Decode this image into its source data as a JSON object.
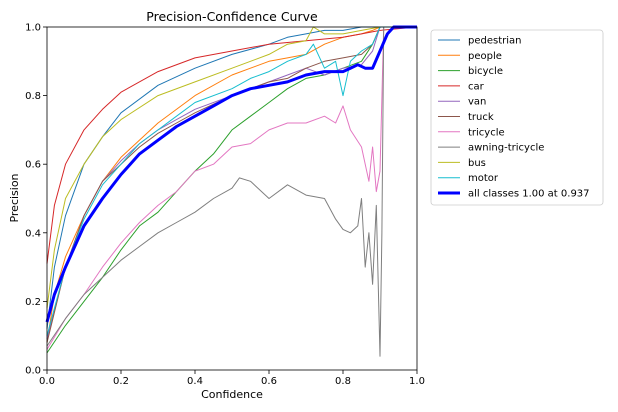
{
  "chart_data": {
    "type": "line",
    "title": "Precision-Confidence Curve",
    "xlabel": "Confidence",
    "ylabel": "Precision",
    "xlim": [
      0.0,
      1.0
    ],
    "ylim": [
      0.0,
      1.0
    ],
    "xticks": [
      "0.0",
      "0.2",
      "0.4",
      "0.6",
      "0.8",
      "1.0"
    ],
    "yticks": [
      "0.0",
      "0.2",
      "0.4",
      "0.6",
      "0.8",
      "1.0"
    ],
    "grid": false,
    "legend_position": "outside-right",
    "series": [
      {
        "name": "pedestrian",
        "color": "#1f77b4",
        "width": 1,
        "x": [
          0,
          0.02,
          0.05,
          0.1,
          0.15,
          0.2,
          0.3,
          0.4,
          0.5,
          0.6,
          0.65,
          0.7,
          0.75,
          0.8,
          0.85,
          0.9,
          0.95,
          1.0
        ],
        "y": [
          0.12,
          0.3,
          0.45,
          0.6,
          0.68,
          0.75,
          0.83,
          0.88,
          0.92,
          0.95,
          0.97,
          0.98,
          0.99,
          0.99,
          1.0,
          1.0,
          1.0,
          1.0
        ]
      },
      {
        "name": "people",
        "color": "#ff7f0e",
        "width": 1,
        "x": [
          0,
          0.02,
          0.05,
          0.1,
          0.15,
          0.2,
          0.3,
          0.4,
          0.5,
          0.6,
          0.65,
          0.7,
          0.75,
          0.8,
          0.85,
          0.88,
          0.9,
          1.0
        ],
        "y": [
          0.08,
          0.22,
          0.33,
          0.45,
          0.55,
          0.62,
          0.72,
          0.8,
          0.86,
          0.9,
          0.91,
          0.92,
          0.95,
          0.97,
          0.98,
          0.99,
          1.0,
          1.0
        ]
      },
      {
        "name": "bicycle",
        "color": "#2ca02c",
        "width": 1,
        "x": [
          0,
          0.05,
          0.1,
          0.15,
          0.2,
          0.25,
          0.3,
          0.35,
          0.4,
          0.45,
          0.5,
          0.55,
          0.6,
          0.65,
          0.7,
          0.75,
          0.8,
          0.85,
          0.88,
          0.9,
          1.0
        ],
        "y": [
          0.05,
          0.13,
          0.2,
          0.27,
          0.35,
          0.42,
          0.46,
          0.52,
          0.58,
          0.63,
          0.7,
          0.74,
          0.78,
          0.82,
          0.85,
          0.86,
          0.88,
          0.9,
          0.95,
          1.0,
          1.0
        ]
      },
      {
        "name": "car",
        "color": "#d62728",
        "width": 1,
        "x": [
          0,
          0.02,
          0.05,
          0.1,
          0.15,
          0.2,
          0.3,
          0.4,
          0.5,
          0.6,
          0.7,
          0.8,
          0.85,
          0.9,
          1.0
        ],
        "y": [
          0.31,
          0.48,
          0.6,
          0.7,
          0.76,
          0.81,
          0.87,
          0.91,
          0.93,
          0.95,
          0.96,
          0.97,
          0.98,
          0.99,
          1.0
        ]
      },
      {
        "name": "van",
        "color": "#9467bd",
        "width": 1,
        "x": [
          0,
          0.05,
          0.1,
          0.15,
          0.2,
          0.25,
          0.3,
          0.35,
          0.4,
          0.5,
          0.55,
          0.6,
          0.65,
          0.7,
          0.75,
          0.8,
          0.85,
          0.88,
          0.9,
          1.0
        ],
        "y": [
          0.09,
          0.3,
          0.45,
          0.55,
          0.61,
          0.66,
          0.7,
          0.73,
          0.76,
          0.8,
          0.82,
          0.84,
          0.86,
          0.88,
          0.86,
          0.88,
          0.89,
          0.93,
          1.0,
          1.0
        ]
      },
      {
        "name": "truck",
        "color": "#8c564b",
        "width": 1,
        "x": [
          0,
          0.05,
          0.1,
          0.15,
          0.2,
          0.25,
          0.3,
          0.35,
          0.4,
          0.5,
          0.55,
          0.6,
          0.65,
          0.7,
          0.75,
          0.8,
          0.85,
          0.88,
          0.9,
          1.0
        ],
        "y": [
          0.08,
          0.3,
          0.45,
          0.55,
          0.6,
          0.65,
          0.69,
          0.72,
          0.75,
          0.8,
          0.82,
          0.84,
          0.85,
          0.88,
          0.9,
          0.91,
          0.92,
          0.95,
          1.0,
          1.0
        ]
      },
      {
        "name": "tricycle",
        "color": "#e377c2",
        "width": 1,
        "x": [
          0,
          0.05,
          0.1,
          0.15,
          0.2,
          0.25,
          0.3,
          0.35,
          0.4,
          0.45,
          0.5,
          0.55,
          0.6,
          0.65,
          0.7,
          0.75,
          0.78,
          0.8,
          0.82,
          0.85,
          0.87,
          0.88,
          0.89,
          0.9,
          0.91,
          1.0
        ],
        "y": [
          0.06,
          0.15,
          0.22,
          0.3,
          0.37,
          0.43,
          0.48,
          0.52,
          0.58,
          0.6,
          0.65,
          0.66,
          0.7,
          0.72,
          0.72,
          0.74,
          0.72,
          0.77,
          0.7,
          0.65,
          0.55,
          0.65,
          0.52,
          0.58,
          1.0,
          1.0
        ]
      },
      {
        "name": "awning-tricycle",
        "color": "#7f7f7f",
        "width": 1,
        "x": [
          0,
          0.05,
          0.1,
          0.15,
          0.2,
          0.25,
          0.3,
          0.35,
          0.4,
          0.45,
          0.5,
          0.52,
          0.55,
          0.6,
          0.65,
          0.7,
          0.75,
          0.78,
          0.8,
          0.82,
          0.84,
          0.85,
          0.86,
          0.87,
          0.88,
          0.89,
          0.9,
          0.905,
          0.91,
          0.92,
          1.0
        ],
        "y": [
          0.07,
          0.15,
          0.22,
          0.27,
          0.32,
          0.36,
          0.4,
          0.43,
          0.46,
          0.5,
          0.53,
          0.56,
          0.55,
          0.5,
          0.54,
          0.51,
          0.5,
          0.44,
          0.41,
          0.4,
          0.42,
          0.5,
          0.3,
          0.4,
          0.25,
          0.48,
          0.04,
          0.4,
          1.0,
          1.0,
          1.0
        ]
      },
      {
        "name": "bus",
        "color": "#bcbd22",
        "width": 1,
        "x": [
          0,
          0.02,
          0.05,
          0.1,
          0.15,
          0.2,
          0.3,
          0.4,
          0.5,
          0.6,
          0.65,
          0.7,
          0.72,
          0.75,
          0.8,
          0.85,
          0.9,
          1.0
        ],
        "y": [
          0.18,
          0.35,
          0.5,
          0.6,
          0.68,
          0.73,
          0.8,
          0.84,
          0.88,
          0.92,
          0.95,
          0.96,
          1.0,
          0.98,
          0.98,
          0.99,
          1.0,
          1.0
        ]
      },
      {
        "name": "motor",
        "color": "#17becf",
        "width": 1,
        "x": [
          0,
          0.05,
          0.1,
          0.15,
          0.2,
          0.25,
          0.3,
          0.35,
          0.4,
          0.5,
          0.55,
          0.6,
          0.65,
          0.7,
          0.72,
          0.75,
          0.78,
          0.8,
          0.82,
          0.85,
          0.88,
          0.9,
          1.0
        ],
        "y": [
          0.1,
          0.3,
          0.44,
          0.54,
          0.6,
          0.66,
          0.7,
          0.74,
          0.78,
          0.82,
          0.85,
          0.87,
          0.9,
          0.92,
          0.95,
          0.88,
          0.9,
          0.8,
          0.9,
          0.93,
          0.95,
          1.0,
          1.0
        ]
      },
      {
        "name": "all classes 1.00 at 0.937",
        "color": "#0000ff",
        "width": 3,
        "x": [
          0,
          0.02,
          0.05,
          0.1,
          0.15,
          0.2,
          0.25,
          0.3,
          0.35,
          0.4,
          0.45,
          0.5,
          0.55,
          0.6,
          0.65,
          0.7,
          0.75,
          0.8,
          0.82,
          0.84,
          0.86,
          0.88,
          0.9,
          0.92,
          0.937,
          1.0
        ],
        "y": [
          0.14,
          0.22,
          0.3,
          0.42,
          0.5,
          0.57,
          0.63,
          0.67,
          0.71,
          0.74,
          0.77,
          0.8,
          0.82,
          0.83,
          0.84,
          0.86,
          0.87,
          0.87,
          0.88,
          0.89,
          0.88,
          0.88,
          0.93,
          0.98,
          1.0,
          1.0
        ]
      }
    ]
  }
}
